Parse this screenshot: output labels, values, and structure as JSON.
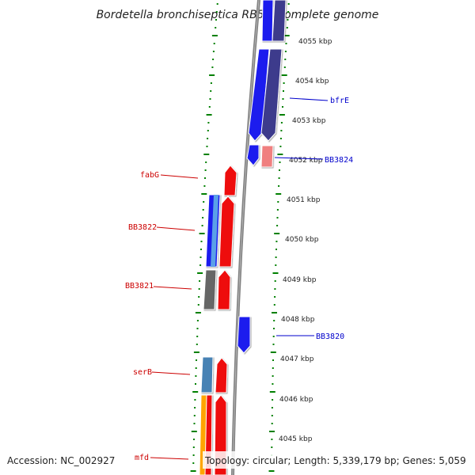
{
  "title": "Bordetella bronchiseptica RB50, complete genome",
  "footer": {
    "accession": "Accession: NC_002927",
    "summary": "Topology: circular; Length: 5,339,179 bp; Genes: 5,059"
  },
  "colors": {
    "forward": "#ff0000",
    "reverse": "#0000ff",
    "reverse_dark": "#3d3a8c",
    "pink": "#f08080",
    "gray": "#666666",
    "steelblue": "#4682b4",
    "lightblue": "#5aa0e8",
    "orange": "#ffa500",
    "ticks": "#008000",
    "backbone": "#808080",
    "label_red": "#cc0000",
    "label_blue": "#0000cc"
  },
  "scale_labels": [
    "4055 kbp",
    "4054 kbp",
    "4053 kbp",
    "4052 kbp",
    "4051 kbp",
    "4050 kbp",
    "4049 kbp",
    "4048 kbp",
    "4047 kbp",
    "4046 kbp",
    "4045 kbp"
  ],
  "gene_labels": [
    {
      "name": "bfrE",
      "strand": "reverse"
    },
    {
      "name": "BB3824",
      "strand": "reverse"
    },
    {
      "name": "fabG",
      "strand": "forward"
    },
    {
      "name": "BB3822",
      "strand": "forward"
    },
    {
      "name": "BB3821",
      "strand": "forward"
    },
    {
      "name": "BB3820",
      "strand": "reverse"
    },
    {
      "name": "serB",
      "strand": "forward"
    },
    {
      "name": "mfd",
      "strand": "forward"
    }
  ]
}
